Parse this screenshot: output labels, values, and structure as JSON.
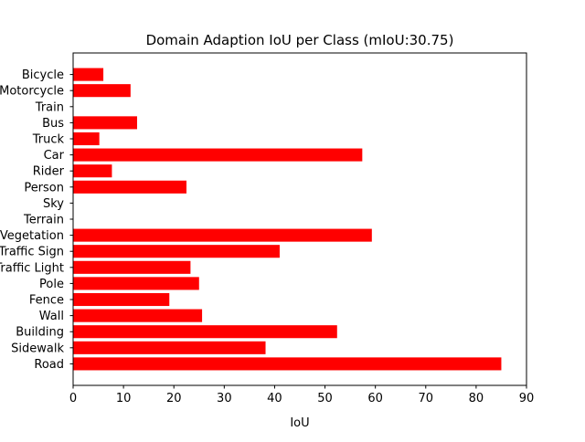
{
  "chart_data": {
    "type": "bar",
    "orientation": "horizontal",
    "title": "Domain Adaption IoU per Class (mIoU:30.75)",
    "xlabel": "IoU",
    "ylabel": "",
    "xlim": [
      0,
      90
    ],
    "xticks": [
      0,
      10,
      20,
      30,
      40,
      50,
      60,
      70,
      80,
      90
    ],
    "bar_color": "#ff0000",
    "grid": false,
    "categories": [
      "Road",
      "Sidewalk",
      "Building",
      "Wall",
      "Fence",
      "Pole",
      "Traffic Light",
      "Traffic Sign",
      "Vegetation",
      "Terrain",
      "Sky",
      "Person",
      "Rider",
      "Car",
      "Truck",
      "Bus",
      "Train",
      "Motorcycle",
      "Bicycle"
    ],
    "values": [
      85.0,
      38.2,
      52.4,
      25.6,
      19.1,
      25.0,
      23.3,
      41.0,
      59.3,
      0.0,
      0.0,
      22.5,
      7.7,
      57.4,
      5.2,
      12.7,
      0.0,
      11.4,
      6.0
    ]
  }
}
